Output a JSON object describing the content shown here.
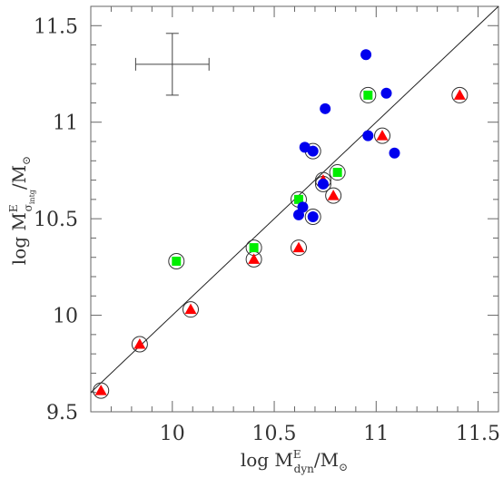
{
  "chart_data": {
    "type": "scatter",
    "title": "",
    "xlabel": {
      "prefix": "log M",
      "sup": "E",
      "sub": "dyn",
      "suffix": "/M",
      "sun": "⊙"
    },
    "ylabel": {
      "prefix": "log M",
      "sup": "E",
      "sub": "σ",
      "subsub": "intg",
      "suffix": "/M",
      "sun": "⊙"
    },
    "xlim": [
      9.6,
      11.6
    ],
    "ylim": [
      9.5,
      11.6
    ],
    "xticks": [
      10,
      10.5,
      11,
      11.5
    ],
    "xtick_labels": [
      "10",
      "10.5",
      "11",
      "11.5"
    ],
    "yticks": [
      9.5,
      10,
      10.5,
      11,
      11.5
    ],
    "ytick_labels": [
      "9.5",
      "10",
      "10.5",
      "11",
      "11.5"
    ],
    "one_to_one_line": [
      [
        9.6,
        9.6
      ],
      [
        11.6,
        11.6
      ]
    ],
    "error_bar": {
      "x": 10.0,
      "y": 11.3,
      "xerr": 0.18,
      "yerr": 0.16
    },
    "circled_series": [
      [
        9.65,
        9.61
      ],
      [
        9.84,
        9.85
      ],
      [
        10.02,
        10.28
      ],
      [
        10.09,
        10.03
      ],
      [
        10.4,
        10.35
      ],
      [
        10.4,
        10.29
      ],
      [
        10.62,
        10.35
      ],
      [
        10.62,
        10.6
      ],
      [
        10.69,
        10.51
      ],
      [
        10.69,
        10.85
      ],
      [
        10.74,
        10.68
      ],
      [
        10.74,
        10.7
      ],
      [
        10.79,
        10.62
      ],
      [
        10.81,
        10.74
      ],
      [
        10.96,
        11.14
      ],
      [
        11.03,
        10.93
      ],
      [
        11.41,
        11.14
      ]
    ],
    "series": [
      {
        "marker": "triangle",
        "color": "#ff0000",
        "points": [
          [
            9.65,
            9.61
          ],
          [
            9.84,
            9.85
          ],
          [
            10.09,
            10.03
          ],
          [
            10.4,
            10.29
          ],
          [
            10.62,
            10.35
          ],
          [
            10.74,
            10.7
          ],
          [
            10.79,
            10.62
          ],
          [
            11.03,
            10.93
          ],
          [
            11.41,
            11.14
          ]
        ]
      },
      {
        "marker": "square",
        "color": "#00ee00",
        "points": [
          [
            10.02,
            10.28
          ],
          [
            10.4,
            10.35
          ],
          [
            10.62,
            10.6
          ],
          [
            10.81,
            10.74
          ],
          [
            10.96,
            11.14
          ]
        ]
      },
      {
        "marker": "circle",
        "color": "#0000ee",
        "points": [
          [
            10.62,
            10.52
          ],
          [
            10.64,
            10.56
          ],
          [
            10.65,
            10.87
          ],
          [
            10.69,
            10.51
          ],
          [
            10.69,
            10.85
          ],
          [
            10.74,
            10.68
          ],
          [
            10.75,
            11.07
          ],
          [
            10.95,
            11.35
          ],
          [
            10.96,
            10.93
          ],
          [
            11.05,
            11.15
          ],
          [
            11.09,
            10.84
          ]
        ]
      }
    ],
    "grid": false,
    "legend": "none"
  }
}
